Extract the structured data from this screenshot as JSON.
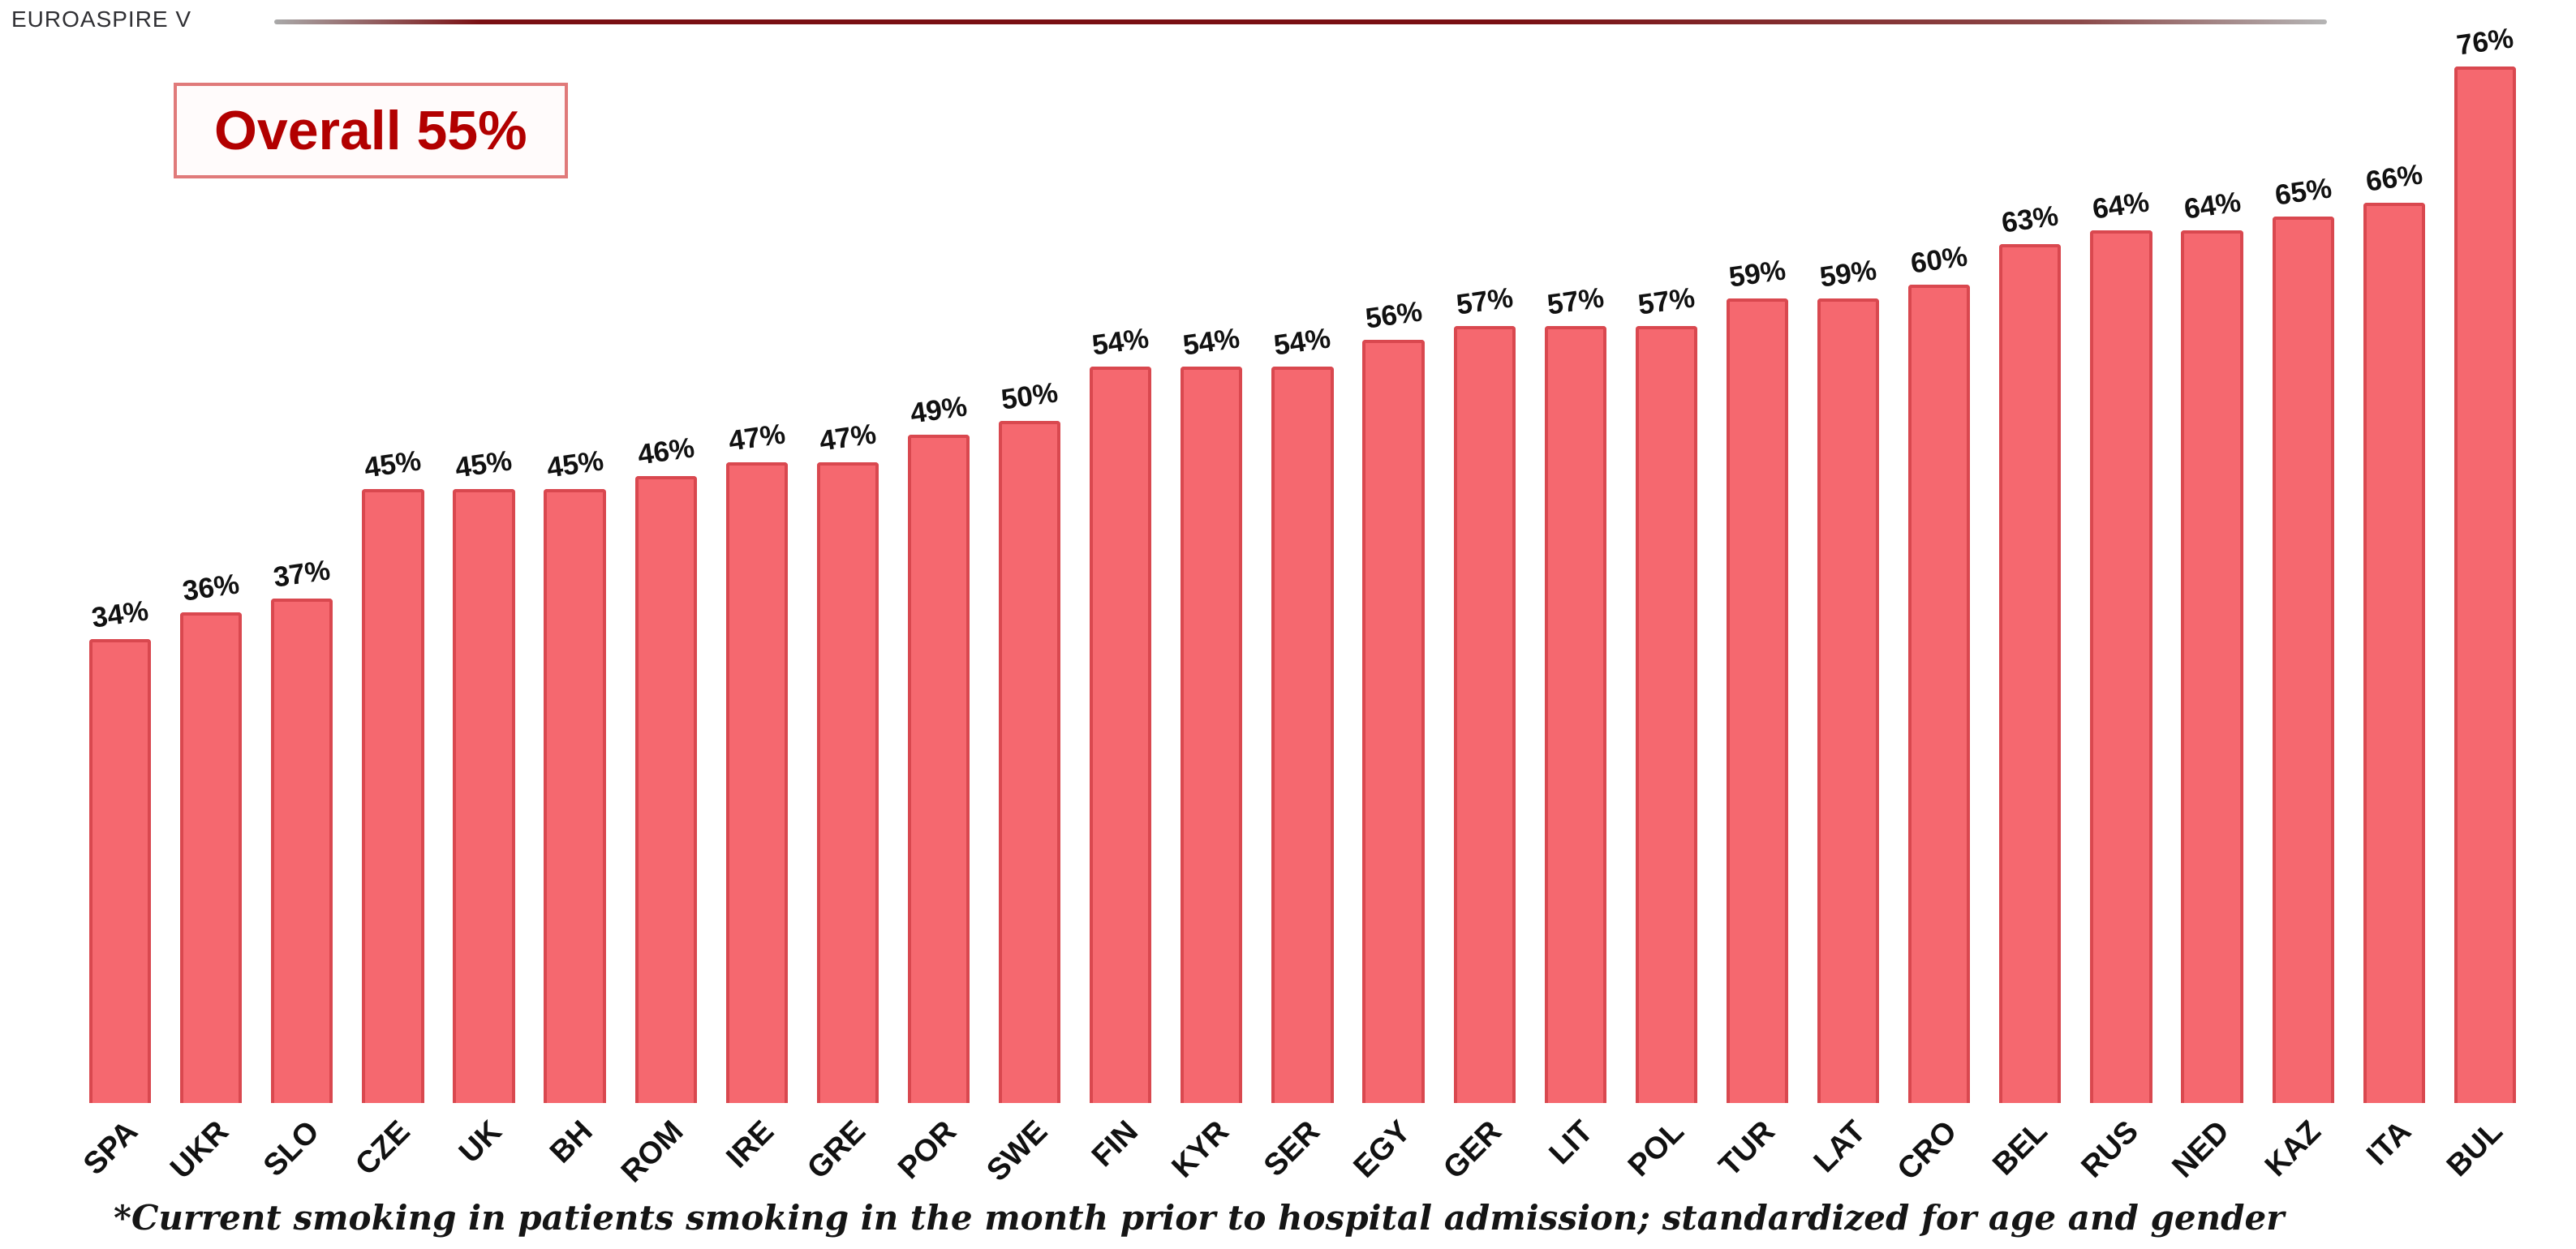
{
  "header": {
    "title": "EUROASPIRE V"
  },
  "overall_badge": {
    "label": "Overall 55%"
  },
  "footnote": "*Current smoking in patients smoking in the month prior to hospital admission; standardized for age and gender",
  "colors": {
    "bar_fill": "#f5686f",
    "bar_border": "#d9484f",
    "badge_text": "#b20000",
    "badge_border": "#e07a7a",
    "header_line": "#7a1013",
    "label_text": "#111111"
  },
  "chart_data": {
    "type": "bar",
    "title": "EUROASPIRE V",
    "xlabel": "",
    "ylabel": "",
    "ylim": [
      0,
      80
    ],
    "grid": false,
    "legend": false,
    "overall": 55,
    "overall_label": "Overall 55%",
    "categories": [
      "SPA",
      "UKR",
      "SLO",
      "CZE",
      "UK",
      "BH",
      "ROM",
      "IRE",
      "GRE",
      "POR",
      "SWE",
      "FIN",
      "KYR",
      "SER",
      "EGY",
      "GER",
      "LIT",
      "POL",
      "TUR",
      "LAT",
      "CRO",
      "BEL",
      "RUS",
      "NED",
      "KAZ",
      "ITA",
      "BUL"
    ],
    "values": [
      34,
      36,
      37,
      45,
      45,
      45,
      46,
      47,
      47,
      49,
      50,
      54,
      54,
      54,
      56,
      57,
      57,
      57,
      59,
      59,
      60,
      63,
      64,
      64,
      65,
      66,
      76
    ],
    "value_labels": [
      "34%",
      "36%",
      "37%",
      "45%",
      "45%",
      "45%",
      "46%",
      "47%",
      "47%",
      "49%",
      "50%",
      "54%",
      "54%",
      "54%",
      "56%",
      "57%",
      "57%",
      "57%",
      "59%",
      "59%",
      "60%",
      "63%",
      "64%",
      "64%",
      "65%",
      "66%",
      "76%"
    ]
  }
}
